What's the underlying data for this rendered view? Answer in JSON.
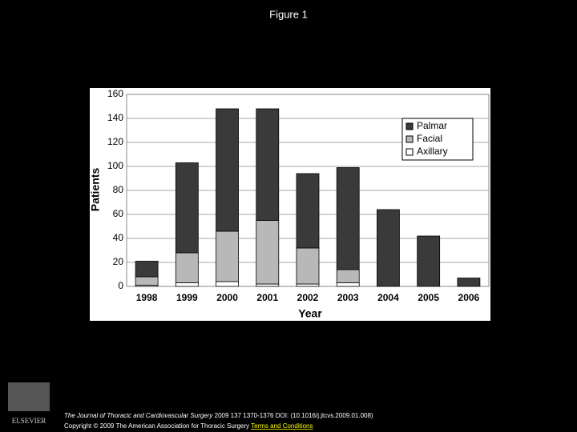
{
  "slide_title": "Figure 1",
  "chart_data": {
    "type": "bar",
    "stacked": true,
    "x_label": "Year",
    "y_label": "Patients",
    "categories": [
      "1998",
      "1999",
      "2000",
      "2001",
      "2002",
      "2003",
      "2004",
      "2005",
      "2006"
    ],
    "series": [
      {
        "name": "Palmar",
        "color": "#3a3a3a",
        "values": [
          13,
          75,
          102,
          93,
          62,
          85,
          64,
          42,
          7
        ]
      },
      {
        "name": "Facial",
        "color": "#b8b8b8",
        "values": [
          7,
          25,
          42,
          53,
          30,
          11,
          0,
          0,
          0
        ]
      },
      {
        "name": "Axillary",
        "color": "#ffffff",
        "values": [
          1,
          3,
          4,
          2,
          2,
          3,
          0,
          0,
          0
        ]
      }
    ],
    "ylim": [
      0,
      160
    ],
    "yticks": [
      0,
      20,
      40,
      60,
      80,
      100,
      120,
      140,
      160
    ],
    "grid": true,
    "legend": "upper right"
  },
  "footer": {
    "journal": "The Journal of Thoracic and Cardiovascular Surgery",
    "citation": "2009 137 1370-1376 DOI: (10.1016/j.jtcvs.2009.01.008)",
    "copyright": "Copyright © 2009 The American Association for Thoracic Surgery",
    "link": "Terms and Conditions",
    "logo_text": "ELSEVIER"
  }
}
